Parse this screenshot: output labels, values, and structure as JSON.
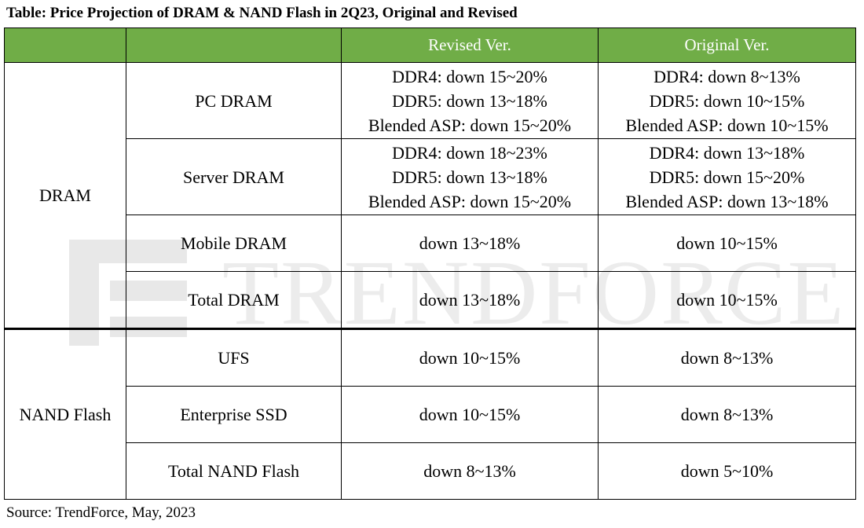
{
  "title": "Table: Price Projection of DRAM & NAND Flash in 2Q23, Original and Revised",
  "header": {
    "revised": "Revised Ver.",
    "original": "Original Ver."
  },
  "groups": {
    "dram": "DRAM",
    "nand": "NAND Flash"
  },
  "rows": [
    {
      "label": "PC DRAM",
      "revised": [
        "DDR4: down 15~20%",
        "DDR5: down 13~18%",
        "Blended ASP: down 15~20%"
      ],
      "original": [
        "DDR4: down 8~13%",
        "DDR5: down 10~15%",
        "Blended ASP: down 10~15%"
      ]
    },
    {
      "label": "Server DRAM",
      "revised": [
        "DDR4: down 18~23%",
        "DDR5: down 13~18%",
        "Blended ASP: down 15~20%"
      ],
      "original": [
        "DDR4: down 13~18%",
        "DDR5: down 15~20%",
        "Blended ASP: down 13~18%"
      ]
    },
    {
      "label": "Mobile DRAM",
      "revised": "down 13~18%",
      "original": "down 10~15%"
    },
    {
      "label": "Total DRAM",
      "revised": "down 13~18%",
      "original": "down 10~15%"
    },
    {
      "label": "UFS",
      "revised": "down 10~15%",
      "original": "down 8~13%"
    },
    {
      "label": "Enterprise SSD",
      "revised": "down 10~15%",
      "original": "down 8~13%"
    },
    {
      "label": "Total NAND Flash",
      "revised": "down 8~13%",
      "original": "down 5~10%"
    }
  ],
  "watermark": "TRENDFORCE",
  "source": "Source: TrendForce, May, 2023",
  "colors": {
    "header_bg": "#70ad47",
    "header_text": "#ffffff"
  }
}
